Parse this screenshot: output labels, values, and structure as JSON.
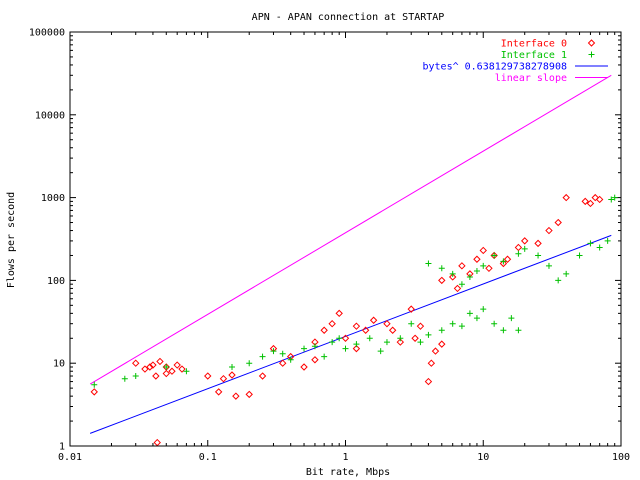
{
  "chart_data": {
    "type": "scatter",
    "title": "APN - APAN connection at STARTAP",
    "xlabel": "Bit rate, Mbps",
    "ylabel": "Flows per second",
    "x_scale": "log",
    "y_scale": "log",
    "xlim": [
      0.01,
      100
    ],
    "ylim": [
      1,
      100000
    ],
    "x_ticks": [
      0.01,
      0.1,
      1,
      10,
      100
    ],
    "x_tick_labels": [
      "0.01",
      "0.1",
      "1",
      "10",
      "100"
    ],
    "y_ticks": [
      1,
      10,
      100,
      1000,
      10000,
      100000
    ],
    "y_tick_labels": [
      "1",
      "10",
      "100",
      "1000",
      "10000",
      "100000"
    ],
    "grid": false,
    "legend_position": "top-right",
    "series": [
      {
        "name": "Interface 0",
        "marker": "diamond",
        "color": "#ff0000",
        "points": [
          [
            0.015,
            4.5
          ],
          [
            0.043,
            1.1
          ],
          [
            0.03,
            10
          ],
          [
            0.035,
            8.5
          ],
          [
            0.04,
            9.5
          ],
          [
            0.045,
            10.5
          ],
          [
            0.05,
            9
          ],
          [
            0.055,
            8
          ],
          [
            0.06,
            9.5
          ],
          [
            0.042,
            7
          ],
          [
            0.05,
            7.5
          ],
          [
            0.038,
            9
          ],
          [
            0.065,
            8.5
          ],
          [
            0.1,
            7
          ],
          [
            0.13,
            6.5
          ],
          [
            0.15,
            7.2
          ],
          [
            0.12,
            4.5
          ],
          [
            0.16,
            4
          ],
          [
            0.2,
            4.2
          ],
          [
            0.25,
            7
          ],
          [
            0.3,
            15
          ],
          [
            0.35,
            10
          ],
          [
            0.4,
            12
          ],
          [
            0.5,
            9
          ],
          [
            0.6,
            18
          ],
          [
            0.7,
            25
          ],
          [
            0.8,
            30
          ],
          [
            0.6,
            11
          ],
          [
            0.9,
            40
          ],
          [
            1.0,
            20
          ],
          [
            1.2,
            28
          ],
          [
            1.4,
            25
          ],
          [
            1.6,
            33
          ],
          [
            1.2,
            15
          ],
          [
            2.0,
            30
          ],
          [
            2.5,
            18
          ],
          [
            2.2,
            25
          ],
          [
            3.0,
            45
          ],
          [
            3.2,
            20
          ],
          [
            3.5,
            28
          ],
          [
            4.0,
            6
          ],
          [
            4.5,
            14
          ],
          [
            5.0,
            17
          ],
          [
            4.2,
            10
          ],
          [
            5.0,
            100
          ],
          [
            6.0,
            110
          ],
          [
            7.0,
            150
          ],
          [
            8.0,
            120
          ],
          [
            6.5,
            80
          ],
          [
            9.0,
            180
          ],
          [
            10,
            230
          ],
          [
            12,
            200
          ],
          [
            14,
            160
          ],
          [
            11,
            140
          ],
          [
            15,
            180
          ],
          [
            18,
            250
          ],
          [
            20,
            300
          ],
          [
            25,
            280
          ],
          [
            30,
            400
          ],
          [
            35,
            500
          ],
          [
            40,
            1000
          ],
          [
            55,
            900
          ],
          [
            60,
            850
          ],
          [
            65,
            1000
          ],
          [
            70,
            950
          ]
        ]
      },
      {
        "name": "Interface 1",
        "marker": "plus",
        "color": "#00c000",
        "points": [
          [
            0.015,
            5.5
          ],
          [
            0.025,
            6.5
          ],
          [
            0.03,
            7
          ],
          [
            0.05,
            9
          ],
          [
            0.07,
            8
          ],
          [
            0.15,
            9
          ],
          [
            0.2,
            10
          ],
          [
            0.25,
            12
          ],
          [
            0.3,
            14
          ],
          [
            0.35,
            13
          ],
          [
            0.4,
            11
          ],
          [
            0.5,
            15
          ],
          [
            0.6,
            16
          ],
          [
            0.7,
            12
          ],
          [
            0.8,
            18
          ],
          [
            0.9,
            20
          ],
          [
            1.0,
            15
          ],
          [
            1.2,
            17
          ],
          [
            1.5,
            20
          ],
          [
            1.8,
            14
          ],
          [
            2.0,
            18
          ],
          [
            2.5,
            20
          ],
          [
            3.0,
            30
          ],
          [
            3.5,
            18
          ],
          [
            4.0,
            22
          ],
          [
            5.0,
            25
          ],
          [
            6.0,
            30
          ],
          [
            7.0,
            28
          ],
          [
            8.0,
            40
          ],
          [
            9.0,
            35
          ],
          [
            10,
            45
          ],
          [
            12,
            30
          ],
          [
            14,
            25
          ],
          [
            16,
            35
          ],
          [
            18,
            25
          ],
          [
            4.0,
            160
          ],
          [
            5.0,
            140
          ],
          [
            6.0,
            120
          ],
          [
            7.0,
            90
          ],
          [
            8.0,
            110
          ],
          [
            9.0,
            130
          ],
          [
            10,
            150
          ],
          [
            12,
            200
          ],
          [
            14,
            170
          ],
          [
            18,
            210
          ],
          [
            20,
            240
          ],
          [
            25,
            200
          ],
          [
            30,
            150
          ],
          [
            35,
            100
          ],
          [
            40,
            120
          ],
          [
            50,
            200
          ],
          [
            60,
            280
          ],
          [
            70,
            250
          ],
          [
            80,
            300
          ],
          [
            85,
            950
          ],
          [
            90,
            1000
          ]
        ]
      },
      {
        "name": "bytes^ 0.638129738278908",
        "marker": "line",
        "color": "#0000ff",
        "points": [
          [
            0.014,
            1.42
          ],
          [
            85,
            350
          ]
        ]
      },
      {
        "name": "linear slope",
        "marker": "line",
        "color": "#ff00ff",
        "points": [
          [
            0.014,
            5.6
          ],
          [
            85,
            30000
          ]
        ]
      }
    ]
  }
}
